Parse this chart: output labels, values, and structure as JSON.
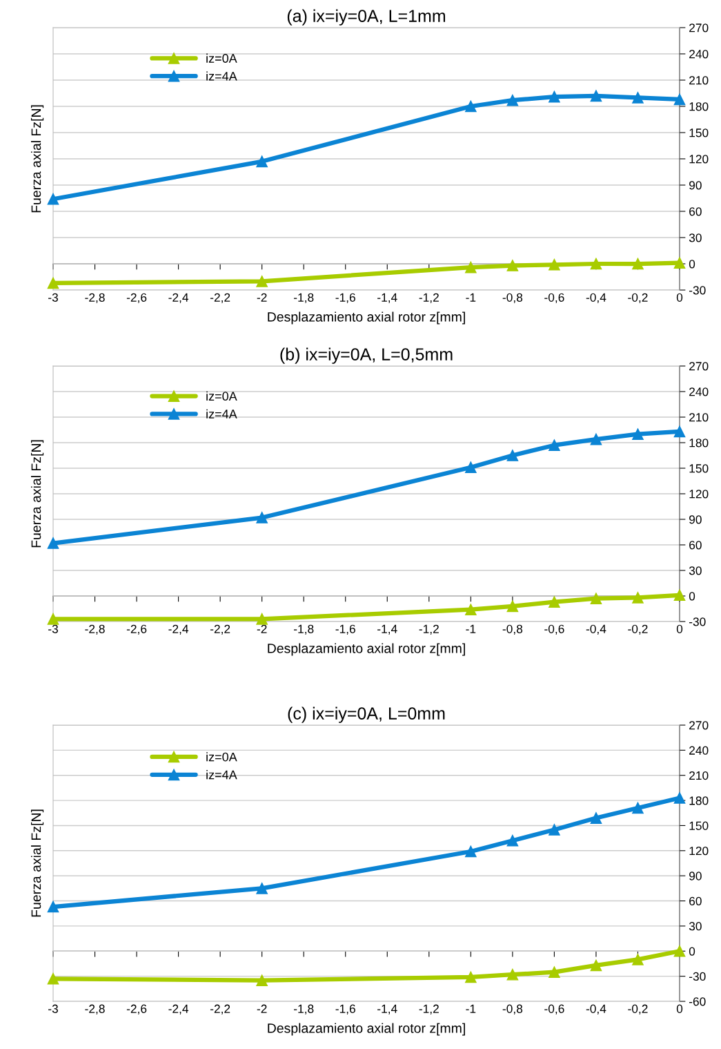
{
  "chart_data": [
    {
      "type": "line",
      "title": "(a) ix=iy=0A, L=1mm",
      "xlabel": "Desplazamiento axial rotor z[mm]",
      "ylabel": "Fuerza axial Fz[N]",
      "x": [
        -3,
        -2,
        -1,
        -0.8,
        -0.6,
        -0.4,
        -0.2,
        0
      ],
      "series": [
        {
          "name": "iz=0A",
          "color": "#a8cc00",
          "marker": "triangle",
          "values": [
            -22,
            -20,
            -4,
            -2,
            -1,
            0,
            0,
            1
          ]
        },
        {
          "name": "iz=4A",
          "color": "#0b84d4",
          "marker": "triangle",
          "values": [
            74,
            117,
            180,
            187,
            191,
            192,
            190,
            188
          ]
        }
      ],
      "xlim": [
        -3,
        0
      ],
      "ylim": [
        -30,
        270
      ],
      "xticks": [
        -3,
        {
          "value": -2.8,
          "label": "-2,8"
        },
        {
          "value": -2.6,
          "label": "-2,6"
        },
        {
          "value": -2.4,
          "label": "-2,4"
        },
        {
          "value": -2.2,
          "label": "-2,2"
        },
        -2,
        {
          "value": -1.8,
          "label": "-1,8"
        },
        {
          "value": -1.6,
          "label": "-1,6"
        },
        {
          "value": -1.4,
          "label": "-1,4"
        },
        {
          "value": -1.2,
          "label": "-1,2"
        },
        -1,
        {
          "value": -0.8,
          "label": "-0,8"
        },
        {
          "value": -0.6,
          "label": "-0,6"
        },
        {
          "value": -0.4,
          "label": "-0,4"
        },
        {
          "value": -0.2,
          "label": "-0,2"
        },
        0
      ],
      "yticks": [
        -30,
        0,
        30,
        60,
        90,
        120,
        150,
        180,
        210,
        240,
        270
      ],
      "grid": "y",
      "legend": "top left",
      "line_style": "solid"
    },
    {
      "type": "line",
      "title": "(b) ix=iy=0A, L=0,5mm",
      "xlabel": "Desplazamiento axial rotor z[mm]",
      "ylabel": "Fuerza axial Fz[N]",
      "x": [
        -3,
        -2,
        -1,
        -0.8,
        -0.6,
        -0.4,
        -0.2,
        0
      ],
      "series": [
        {
          "name": "iz=0A",
          "color": "#a8cc00",
          "marker": "triangle",
          "values": [
            -27,
            -27,
            -16,
            -12,
            -7,
            -3,
            -2,
            1
          ]
        },
        {
          "name": "iz=4A",
          "color": "#0b84d4",
          "marker": "triangle",
          "values": [
            62,
            92,
            151,
            165,
            177,
            184,
            190,
            193
          ]
        }
      ],
      "xlim": [
        -3,
        0
      ],
      "ylim": [
        -30,
        270
      ],
      "xticks": [
        -3,
        {
          "value": -2.8,
          "label": "-2,8"
        },
        {
          "value": -2.6,
          "label": "-2,6"
        },
        {
          "value": -2.4,
          "label": "-2,4"
        },
        {
          "value": -2.2,
          "label": "-2,2"
        },
        -2,
        {
          "value": -1.8,
          "label": "-1,8"
        },
        {
          "value": -1.6,
          "label": "-1,6"
        },
        {
          "value": -1.4,
          "label": "-1,4"
        },
        {
          "value": -1.2,
          "label": "-1,2"
        },
        -1,
        {
          "value": -0.8,
          "label": "-0,8"
        },
        {
          "value": -0.6,
          "label": "-0,6"
        },
        {
          "value": -0.4,
          "label": "-0,4"
        },
        {
          "value": -0.2,
          "label": "-0,2"
        },
        0
      ],
      "yticks": [
        -30,
        0,
        30,
        60,
        90,
        120,
        150,
        180,
        210,
        240,
        270
      ],
      "grid": "y",
      "legend": "top left",
      "line_style": "solid"
    },
    {
      "type": "line",
      "title": "(c) ix=iy=0A, L=0mm",
      "xlabel": "Desplazamiento axial rotor z[mm]",
      "ylabel": "Fuerza axial Fz[N]",
      "x": [
        -3,
        -2,
        -1,
        -0.8,
        -0.6,
        -0.4,
        -0.2,
        0
      ],
      "series": [
        {
          "name": "iz=0A",
          "color": "#a8cc00",
          "marker": "triangle",
          "values": [
            -33,
            -35,
            -31,
            -28,
            -25,
            -17,
            -10,
            0
          ]
        },
        {
          "name": "iz=4A",
          "color": "#0b84d4",
          "marker": "triangle",
          "values": [
            53,
            75,
            119,
            132,
            145,
            159,
            171,
            183
          ]
        }
      ],
      "xlim": [
        -3,
        0
      ],
      "ylim": [
        -60,
        270
      ],
      "xticks": [
        -3,
        {
          "value": -2.8,
          "label": "-2,8"
        },
        {
          "value": -2.6,
          "label": "-2,6"
        },
        {
          "value": -2.4,
          "label": "-2,4"
        },
        {
          "value": -2.2,
          "label": "-2,2"
        },
        -2,
        {
          "value": -1.8,
          "label": "-1,8"
        },
        {
          "value": -1.6,
          "label": "-1,6"
        },
        {
          "value": -1.4,
          "label": "-1,4"
        },
        {
          "value": -1.2,
          "label": "-1,2"
        },
        -1,
        {
          "value": -0.8,
          "label": "-0,8"
        },
        {
          "value": -0.6,
          "label": "-0,6"
        },
        {
          "value": -0.4,
          "label": "-0,4"
        },
        {
          "value": -0.2,
          "label": "-0,2"
        },
        0
      ],
      "yticks": [
        -60,
        -30,
        0,
        30,
        60,
        90,
        120,
        150,
        180,
        210,
        240,
        270
      ],
      "grid": "y",
      "legend": "top left",
      "line_style": "solid"
    }
  ]
}
